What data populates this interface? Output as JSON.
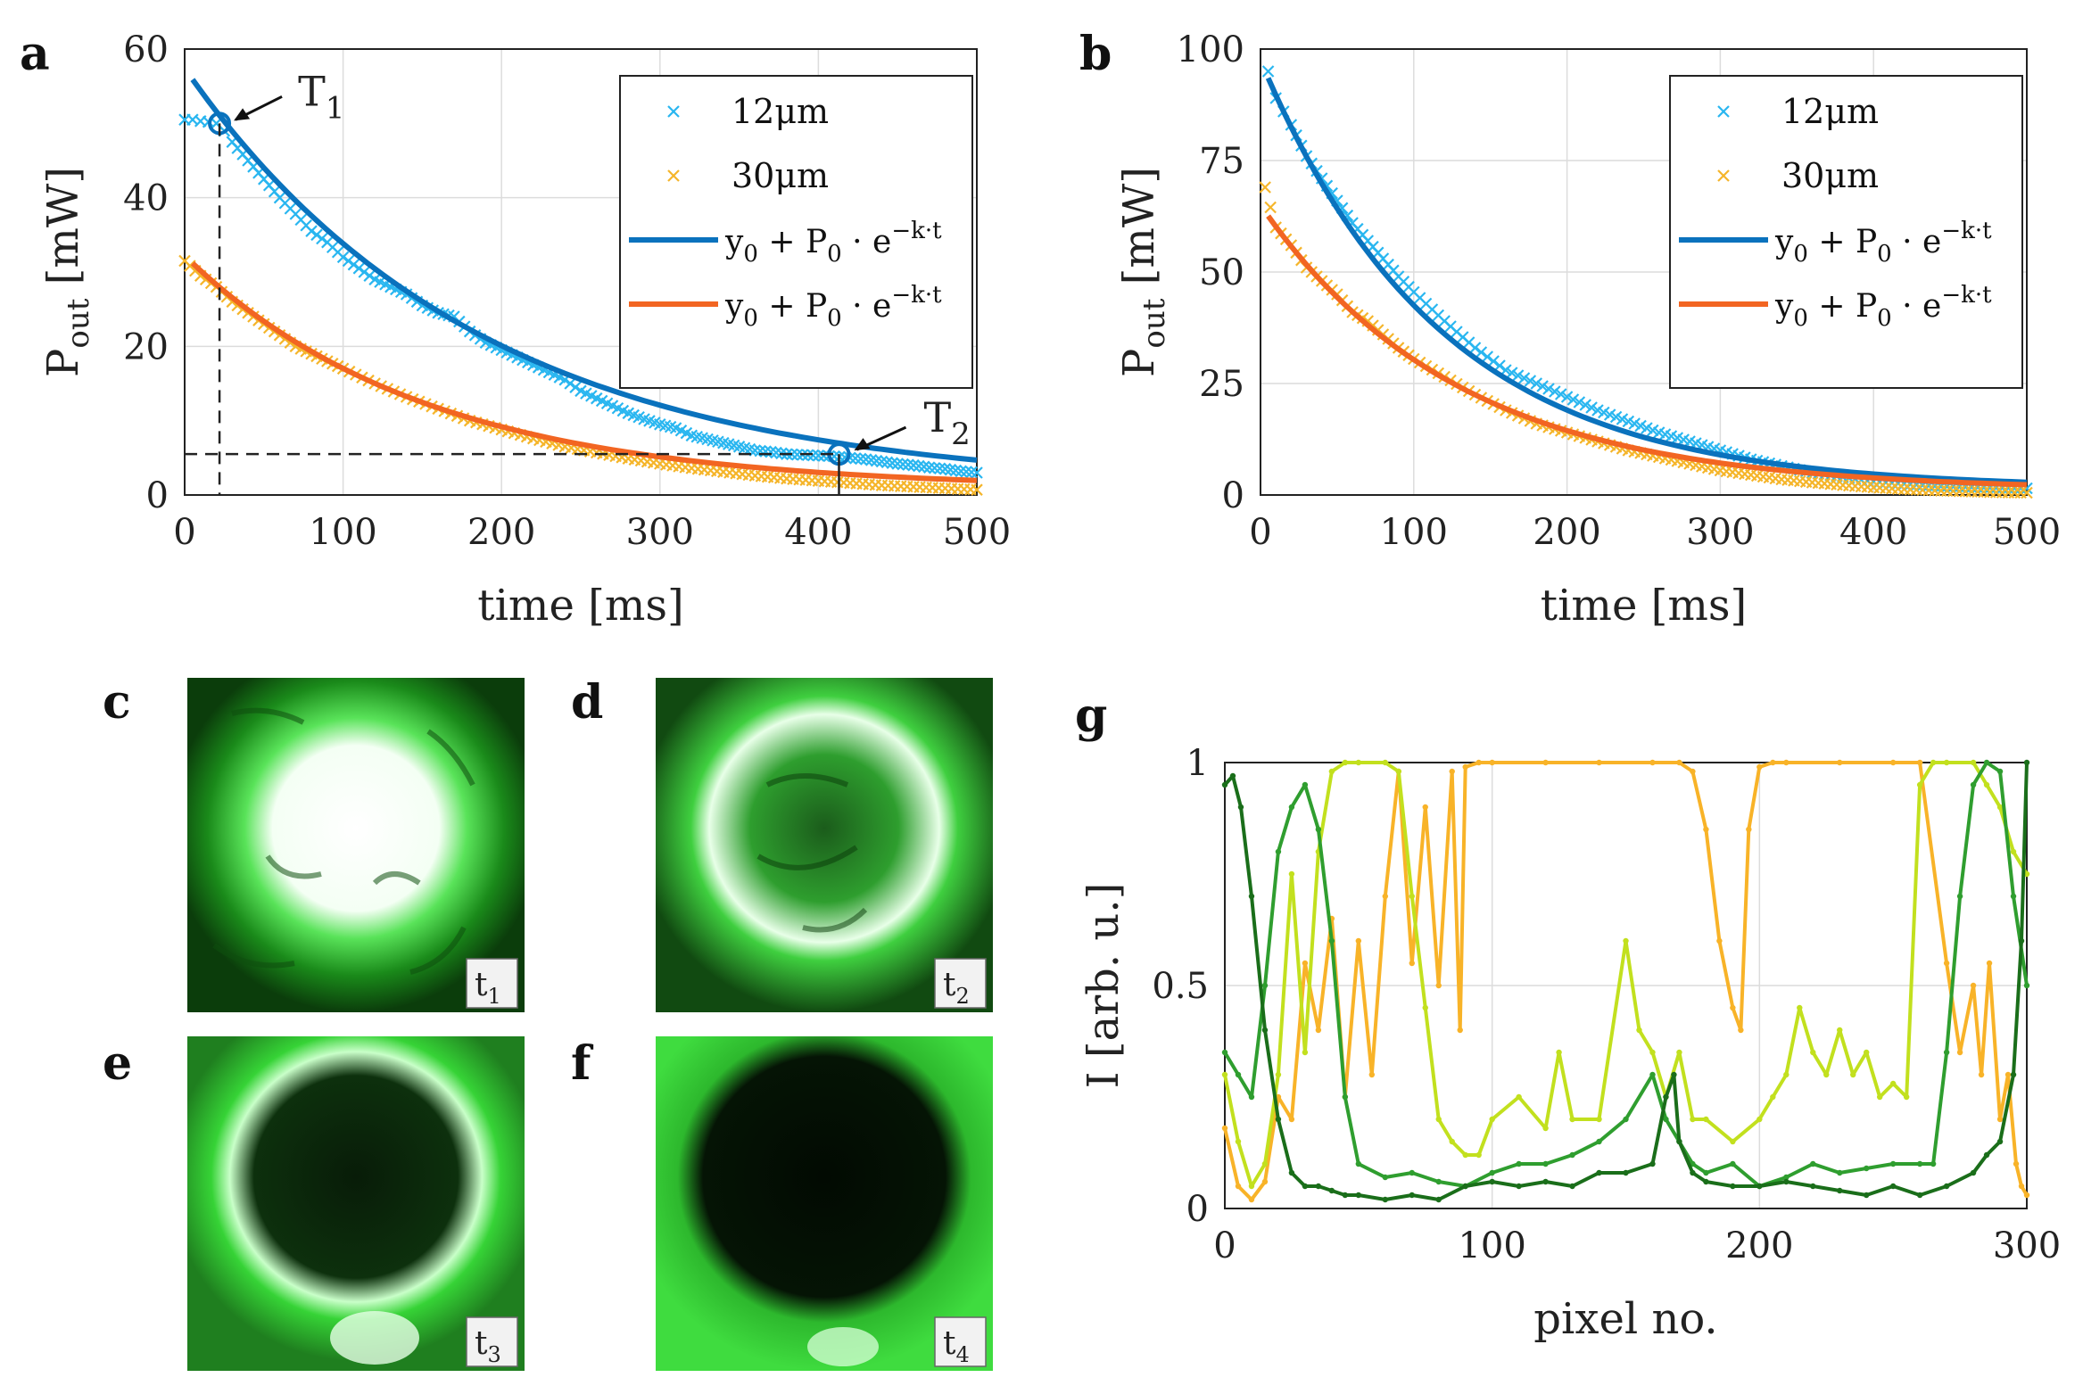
{
  "chart_data": [
    {
      "panel": "a",
      "type": "line",
      "xlabel": "time [ms]",
      "ylabel": "P",
      "ylabel_sub": "out",
      "ylabel_unit": "[mW]",
      "xlim": [
        0,
        500
      ],
      "ylim": [
        0,
        60
      ],
      "xticks": [
        0,
        100,
        200,
        300,
        400,
        500
      ],
      "yticks": [
        0,
        20,
        40,
        60
      ],
      "grid": true,
      "legend": {
        "position": "top-right",
        "entries": [
          {
            "label": "12μm",
            "marker": "x",
            "color": "#29b6f0"
          },
          {
            "label": "30μm",
            "marker": "x",
            "color": "#f5b52a"
          },
          {
            "label": "y0 + P0 · e−k·t",
            "line": true,
            "color": "#0a72bd"
          },
          {
            "label": "y0 + P0 · e−k·t",
            "line": true,
            "color": "#f26522"
          }
        ]
      },
      "series": [
        {
          "name": "12μm",
          "kind": "scatter",
          "color": "#29b6f0",
          "x": [
            0,
            5,
            10,
            15,
            20,
            25,
            30,
            40,
            50,
            60,
            70,
            80,
            90,
            100,
            110,
            120,
            130,
            140,
            150,
            160,
            170,
            180,
            190,
            200,
            210,
            220,
            230,
            240,
            250,
            260,
            270,
            280,
            290,
            300,
            310,
            320,
            330,
            340,
            350,
            360,
            370,
            380,
            390,
            400,
            410,
            420,
            430,
            440,
            450,
            460,
            470,
            480,
            490,
            500
          ],
          "y": [
            50.5,
            50.5,
            50.3,
            50.2,
            50,
            49,
            47.5,
            45,
            42.5,
            40,
            37.8,
            35.5,
            34,
            32,
            30.5,
            29,
            28,
            27,
            25.5,
            24.5,
            24,
            22,
            20.5,
            19.5,
            18.5,
            17.5,
            16.5,
            15.5,
            14,
            13,
            12,
            11,
            10.2,
            9.5,
            9,
            8,
            7.5,
            7,
            6.5,
            6,
            5.8,
            5.5,
            5.4,
            5.3,
            5.2,
            5,
            4.8,
            4.5,
            4.2,
            4,
            3.7,
            3.5,
            3.2,
            3
          ]
        },
        {
          "name": "30μm",
          "kind": "scatter",
          "color": "#f5b52a",
          "x": [
            0,
            10,
            20,
            30,
            40,
            50,
            60,
            70,
            80,
            90,
            100,
            120,
            140,
            160,
            180,
            200,
            220,
            240,
            260,
            280,
            300,
            320,
            340,
            360,
            380,
            400,
            420,
            440,
            460,
            480,
            500
          ],
          "y": [
            31.5,
            29.5,
            28,
            26,
            24.5,
            23,
            21.5,
            20,
            19,
            18,
            17,
            15,
            13.2,
            11.6,
            10,
            8.8,
            7.6,
            6.5,
            5.7,
            4.9,
            4.2,
            3.6,
            3.1,
            2.6,
            2.2,
            1.9,
            1.6,
            1.3,
            1.1,
            0.9,
            0.7
          ]
        },
        {
          "name": "12μm fit",
          "kind": "line",
          "color": "#0a72bd",
          "fit": {
            "y0": 0.9,
            "P0": 56.5,
            "k": 0.0054
          }
        },
        {
          "name": "30μm fit",
          "kind": "line",
          "color": "#f26522",
          "fit": {
            "y0": 0.8,
            "P0": 31.4,
            "k": 0.0066
          }
        }
      ],
      "annotations": [
        {
          "label": "T",
          "sub": "1",
          "x": 22,
          "y": 50
        },
        {
          "label": "T",
          "sub": "2",
          "x": 413,
          "y": 5.5
        }
      ]
    },
    {
      "panel": "b",
      "type": "line",
      "xlabel": "time [ms]",
      "ylabel": "P",
      "ylabel_sub": "out",
      "ylabel_unit": "[mW]",
      "xlim": [
        0,
        500
      ],
      "ylim": [
        0,
        100
      ],
      "xticks": [
        0,
        100,
        200,
        300,
        400,
        500
      ],
      "yticks": [
        0,
        25,
        50,
        75,
        100
      ],
      "grid": true,
      "legend": {
        "position": "top-right",
        "entries": [
          {
            "label": "12μm",
            "marker": "x",
            "color": "#29b6f0"
          },
          {
            "label": "30μm",
            "marker": "x",
            "color": "#f5b52a"
          },
          {
            "label": "y0 + P0 · e−k·t",
            "line": true,
            "color": "#0a72bd"
          },
          {
            "label": "y0 + P0 · e−k·t",
            "line": true,
            "color": "#f26522"
          }
        ]
      },
      "series": [
        {
          "name": "12μm",
          "kind": "scatter",
          "color": "#29b6f0",
          "x": [
            5,
            10,
            15,
            20,
            30,
            40,
            50,
            60,
            70,
            80,
            90,
            100,
            120,
            140,
            160,
            180,
            200,
            220,
            240,
            260,
            280,
            300,
            320,
            340,
            360,
            380,
            400,
            420,
            440,
            460,
            480,
            500
          ],
          "y": [
            95,
            89,
            86,
            83,
            76,
            71,
            66,
            61,
            57,
            53,
            49,
            45.5,
            39,
            33,
            28,
            25,
            22,
            19,
            16.5,
            14,
            12,
            10,
            8,
            6.5,
            5,
            4,
            3,
            2.5,
            2,
            1.8,
            1.6,
            1.5
          ]
        },
        {
          "name": "30μm",
          "kind": "scatter",
          "color": "#f5b52a",
          "x": [
            3,
            10,
            20,
            30,
            40,
            50,
            60,
            70,
            80,
            90,
            100,
            120,
            140,
            160,
            180,
            200,
            220,
            240,
            260,
            280,
            300,
            320,
            340,
            360,
            380,
            400,
            420,
            440,
            460,
            480,
            500
          ],
          "y": [
            69,
            60,
            56,
            51,
            48,
            45,
            41,
            39,
            36,
            33,
            30.5,
            26.5,
            22.5,
            19,
            16,
            14,
            12,
            10,
            8.5,
            7,
            5.5,
            4.5,
            3.5,
            2.8,
            2.2,
            1.7,
            1.3,
            1,
            0.8,
            0.6,
            0.5
          ]
        },
        {
          "name": "12μm fit",
          "kind": "line",
          "color": "#0a72bd",
          "fit": {
            "y0": 1.5,
            "P0": 96,
            "k": 0.0085
          }
        },
        {
          "name": "30μm fit",
          "kind": "line",
          "color": "#f26522",
          "fit": {
            "y0": 1.0,
            "P0": 64,
            "k": 0.0078
          }
        }
      ]
    },
    {
      "panel": "g",
      "type": "line",
      "xlabel": "pixel no.",
      "ylabel": "I [arb. u.]",
      "xlim": [
        0,
        300
      ],
      "ylim": [
        0,
        1
      ],
      "xticks": [
        0,
        100,
        200,
        300
      ],
      "ytick_labels": [
        "0",
        "0.5",
        "1"
      ],
      "yticks": [
        0,
        0.5,
        1
      ],
      "grid": true,
      "series": [
        {
          "color": "#f8b328",
          "x": [
            0,
            5,
            10,
            15,
            20,
            25,
            30,
            35,
            40,
            45,
            50,
            55,
            60,
            65,
            70,
            75,
            80,
            85,
            88,
            90,
            95,
            100,
            120,
            140,
            160,
            170,
            175,
            180,
            185,
            190,
            193,
            196,
            200,
            205,
            210,
            230,
            250,
            260,
            270,
            275,
            280,
            283,
            286,
            290,
            293,
            296,
            298,
            300
          ],
          "y": [
            0.18,
            0.05,
            0.02,
            0.06,
            0.25,
            0.2,
            0.55,
            0.4,
            0.65,
            0.25,
            0.6,
            0.3,
            0.7,
            0.98,
            0.55,
            0.9,
            0.5,
            0.98,
            0.4,
            0.99,
            1,
            1,
            1,
            1,
            1,
            1,
            0.98,
            0.85,
            0.6,
            0.45,
            0.4,
            0.85,
            0.99,
            1,
            1,
            1,
            1,
            1,
            0.55,
            0.35,
            0.5,
            0.3,
            0.55,
            0.2,
            0.3,
            0.1,
            0.05,
            0.03
          ]
        },
        {
          "color": "#c2e01e",
          "x": [
            0,
            5,
            10,
            15,
            20,
            25,
            30,
            35,
            40,
            45,
            50,
            60,
            65,
            70,
            75,
            80,
            85,
            90,
            95,
            100,
            110,
            120,
            125,
            130,
            140,
            150,
            155,
            160,
            165,
            170,
            175,
            180,
            190,
            200,
            205,
            210,
            215,
            220,
            225,
            230,
            235,
            240,
            245,
            250,
            255,
            260,
            265,
            270,
            280,
            285,
            290,
            295,
            300
          ],
          "y": [
            0.3,
            0.15,
            0.05,
            0.1,
            0.3,
            0.75,
            0.35,
            0.8,
            0.98,
            1,
            1,
            1,
            0.98,
            0.7,
            0.45,
            0.2,
            0.15,
            0.12,
            0.12,
            0.2,
            0.25,
            0.18,
            0.35,
            0.2,
            0.2,
            0.6,
            0.4,
            0.35,
            0.25,
            0.35,
            0.2,
            0.2,
            0.15,
            0.2,
            0.25,
            0.3,
            0.45,
            0.35,
            0.3,
            0.4,
            0.3,
            0.35,
            0.25,
            0.28,
            0.25,
            0.95,
            1,
            1,
            1,
            0.95,
            0.9,
            0.8,
            0.75
          ]
        },
        {
          "color": "#2f9e2f",
          "x": [
            0,
            5,
            10,
            15,
            20,
            25,
            30,
            35,
            40,
            45,
            50,
            60,
            70,
            80,
            90,
            100,
            110,
            120,
            130,
            140,
            150,
            160,
            165,
            170,
            175,
            180,
            190,
            200,
            210,
            220,
            230,
            240,
            250,
            260,
            265,
            270,
            275,
            280,
            285,
            290,
            295,
            300
          ],
          "y": [
            0.35,
            0.3,
            0.25,
            0.5,
            0.8,
            0.9,
            0.95,
            0.85,
            0.6,
            0.25,
            0.1,
            0.07,
            0.08,
            0.06,
            0.05,
            0.08,
            0.1,
            0.1,
            0.12,
            0.15,
            0.2,
            0.3,
            0.2,
            0.15,
            0.1,
            0.08,
            0.1,
            0.05,
            0.07,
            0.1,
            0.08,
            0.09,
            0.1,
            0.1,
            0.1,
            0.35,
            0.7,
            0.95,
            1,
            0.98,
            0.7,
            0.5
          ]
        },
        {
          "color": "#1a6e1a",
          "x": [
            0,
            3,
            6,
            10,
            15,
            20,
            25,
            30,
            35,
            40,
            45,
            50,
            60,
            70,
            80,
            90,
            100,
            110,
            120,
            130,
            140,
            150,
            160,
            165,
            168,
            170,
            175,
            180,
            190,
            200,
            210,
            220,
            230,
            240,
            250,
            260,
            270,
            280,
            285,
            290,
            295,
            298,
            300
          ],
          "y": [
            0.95,
            0.97,
            0.9,
            0.7,
            0.4,
            0.2,
            0.08,
            0.05,
            0.05,
            0.04,
            0.03,
            0.03,
            0.02,
            0.03,
            0.02,
            0.05,
            0.06,
            0.05,
            0.06,
            0.05,
            0.08,
            0.08,
            0.1,
            0.25,
            0.3,
            0.15,
            0.08,
            0.06,
            0.05,
            0.05,
            0.06,
            0.05,
            0.04,
            0.03,
            0.05,
            0.03,
            0.05,
            0.08,
            0.12,
            0.15,
            0.3,
            0.6,
            1.0
          ]
        }
      ]
    }
  ],
  "panel_labels": {
    "a": "a",
    "b": "b",
    "c": "c",
    "d": "d",
    "e": "e",
    "f": "f",
    "g": "g"
  },
  "images": [
    {
      "panel": "c",
      "tag": "t",
      "sub": "1"
    },
    {
      "panel": "d",
      "tag": "t",
      "sub": "2"
    },
    {
      "panel": "e",
      "tag": "t",
      "sub": "3"
    },
    {
      "panel": "f",
      "tag": "t",
      "sub": "4"
    }
  ]
}
